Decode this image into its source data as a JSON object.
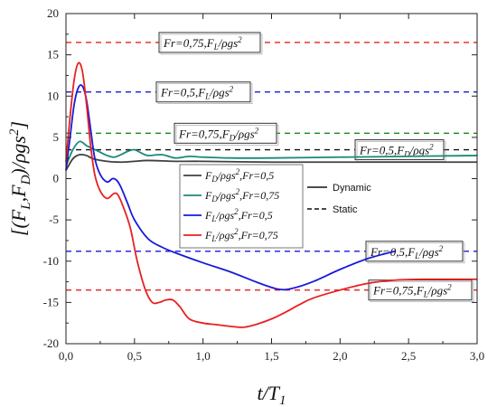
{
  "chart_data": {
    "type": "line",
    "xlabel": "t/T1",
    "ylabel": "[(FL,FD)/ρgs²]",
    "xlim": [
      0,
      3
    ],
    "ylim": [
      -20,
      20
    ],
    "x_ticks": [
      "0,0",
      "0,5",
      "1,0",
      "1,5",
      "2,0",
      "2,5",
      "3,0"
    ],
    "y_ticks": [
      "20",
      "15",
      "10",
      "5",
      "0",
      "-5",
      "-10",
      "-15",
      "-20"
    ],
    "grid": false,
    "series": [
      {
        "name": "F_D/ρgs²,Fr=0,5",
        "color": "#404040",
        "x": [
          0,
          0.05,
          0.1,
          0.15,
          0.2,
          0.3,
          0.4,
          0.5,
          0.6,
          0.8,
          1.0,
          1.5,
          2.0,
          2.5,
          3.0
        ],
        "y": [
          1.0,
          2.4,
          2.9,
          2.8,
          2.4,
          2.1,
          2.0,
          2.1,
          2.2,
          2.1,
          2.1,
          2.0,
          2.0,
          2.0,
          2.0
        ]
      },
      {
        "name": "F_D/ρgs²,Fr=0,75",
        "color": "#1a8a7a",
        "x": [
          0,
          0.05,
          0.1,
          0.15,
          0.2,
          0.25,
          0.3,
          0.35,
          0.4,
          0.45,
          0.5,
          0.55,
          0.6,
          0.7,
          0.8,
          0.9,
          1.0,
          1.2,
          1.5,
          2.0,
          2.5,
          3.0
        ],
        "y": [
          1.5,
          3.5,
          4.5,
          4.0,
          3.6,
          3.2,
          2.8,
          2.6,
          2.9,
          3.3,
          3.5,
          3.1,
          2.8,
          2.9,
          2.5,
          2.7,
          2.6,
          2.5,
          2.5,
          2.6,
          2.7,
          2.8
        ]
      },
      {
        "name": "F_L/ρgs²,Fr=0,5",
        "color": "#1a1ad8",
        "x": [
          0,
          0.03,
          0.06,
          0.09,
          0.12,
          0.15,
          0.18,
          0.21,
          0.25,
          0.3,
          0.34,
          0.37,
          0.4,
          0.45,
          0.5,
          0.6,
          0.7,
          0.8,
          1.0,
          1.2,
          1.4,
          1.55,
          1.65,
          1.8,
          2.0,
          2.2,
          2.4
        ],
        "y": [
          1.0,
          5.0,
          9.0,
          11.0,
          11.2,
          9.5,
          6.0,
          2.5,
          0.5,
          -0.4,
          0.0,
          -0.2,
          -1.0,
          -3.0,
          -5.0,
          -7.3,
          -8.3,
          -9.0,
          -10.2,
          -11.3,
          -12.6,
          -13.4,
          -13.3,
          -12.5,
          -11.0,
          -9.7,
          -8.8
        ]
      },
      {
        "name": "F_L/ρgs²,Fr=0,75",
        "color": "#e82020",
        "x": [
          0,
          0.03,
          0.06,
          0.09,
          0.12,
          0.15,
          0.18,
          0.21,
          0.25,
          0.3,
          0.35,
          0.38,
          0.42,
          0.47,
          0.52,
          0.58,
          0.63,
          0.68,
          0.73,
          0.78,
          0.83,
          0.9,
          1.0,
          1.1,
          1.2,
          1.3,
          1.4,
          1.5,
          1.6,
          1.7,
          1.8,
          2.0,
          2.2,
          2.4,
          2.6,
          2.8,
          3.0
        ],
        "y": [
          2.0,
          7.5,
          12.0,
          14.0,
          13.0,
          9.0,
          4.0,
          0.5,
          -1.5,
          -2.4,
          -1.8,
          -2.0,
          -3.5,
          -6.0,
          -10.0,
          -13.5,
          -15.0,
          -15.0,
          -14.7,
          -14.7,
          -15.5,
          -17.0,
          -17.5,
          -17.7,
          -17.9,
          -18.0,
          -17.6,
          -17.0,
          -16.2,
          -15.3,
          -14.5,
          -13.5,
          -12.7,
          -12.3,
          -12.2,
          -12.2,
          -12.2
        ]
      }
    ],
    "static_lines": [
      {
        "label": "Fr=0,75,F_L/ρgs²",
        "y": 16.5,
        "color": "#e82020"
      },
      {
        "label": "Fr=0,5,F_L/ρgs²",
        "y": 10.5,
        "color": "#1a1ad8"
      },
      {
        "label": "Fr=0,75,F_D/ρgs²",
        "y": 5.5,
        "color": "#1a8a1a"
      },
      {
        "label": "Fr=0,5,F_D/ρgs²",
        "y": 3.5,
        "color": "#111111"
      },
      {
        "label": "Fr=0,5,F_L/ρgs²",
        "y": -8.8,
        "color": "#1a1ad8"
      },
      {
        "label": "Fr=0,75,F_L/ρgs²",
        "y": -13.5,
        "color": "#e82020"
      }
    ],
    "legend_types": [
      {
        "label": "Dynamic",
        "style": "solid"
      },
      {
        "label": "Static",
        "style": "dashed"
      }
    ]
  }
}
